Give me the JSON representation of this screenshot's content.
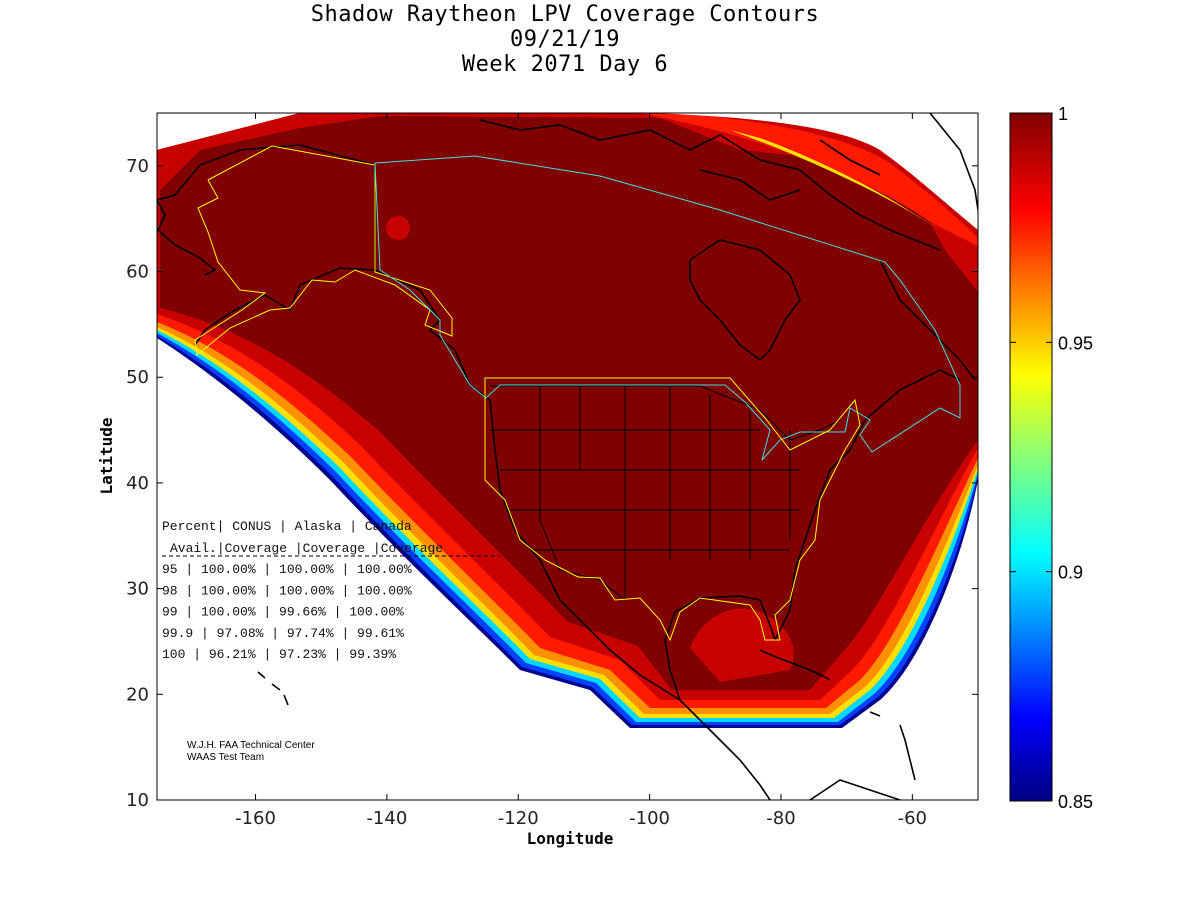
{
  "title": {
    "line1": "Shadow Raytheon LPV Coverage Contours",
    "line2": "09/21/19",
    "line3": "Week 2071 Day 6"
  },
  "axes": {
    "xlabel": "Longitude",
    "ylabel": "Latitude",
    "xrange": [
      -175,
      -50
    ],
    "yrange": [
      10,
      75
    ],
    "xticks": [
      "-160",
      "-140",
      "-120",
      "-100",
      "-80",
      "-60"
    ],
    "yticks": [
      "10",
      "20",
      "30",
      "40",
      "50",
      "60",
      "70"
    ]
  },
  "colorbar": {
    "range": [
      0.85,
      1.0
    ],
    "ticks": [
      "1",
      "0.95",
      "0.9",
      "0.85"
    ],
    "colormap": "jet"
  },
  "table": {
    "header1": [
      "Percent",
      "CONUS",
      "Alaska",
      "Canada"
    ],
    "header2": [
      "Avail.",
      "Coverage",
      "Coverage",
      "Coverage"
    ],
    "rows": [
      [
        "95",
        "100.00%",
        "100.00%",
        "100.00%"
      ],
      [
        "98",
        "100.00%",
        "100.00%",
        "100.00%"
      ],
      [
        "99",
        "100.00%",
        "99.66%",
        "100.00%"
      ],
      [
        "99.9",
        "97.08%",
        "97.74%",
        "99.61%"
      ],
      [
        "100",
        "96.21%",
        "97.23%",
        "99.39%"
      ]
    ]
  },
  "credit": {
    "line1": "W.J.H. FAA Technical Center",
    "line2": "WAAS Test Team"
  },
  "colors": {
    "dark_red": "#800000",
    "red": "#c80000",
    "bright_red": "#ff1a00",
    "orange": "#ff9000",
    "yellow": "#ffe000",
    "cyan": "#00d8ff",
    "blue": "#0040ff",
    "navy": "#000090",
    "alaska_boundary": "#ffff00",
    "canada_boundary": "#40e0e0",
    "conus_boundary": "#ffff00"
  }
}
